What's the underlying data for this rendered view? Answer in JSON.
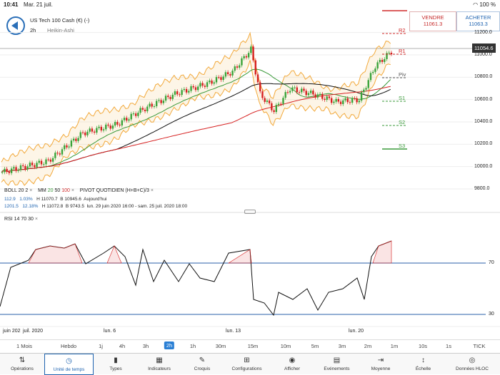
{
  "status_bar": {
    "time": "10:41",
    "date": "Mar. 21 juil.",
    "battery": "100 %"
  },
  "header": {
    "instrument": "US Tech 100 Cash (€) (-)",
    "timeframe": "2h",
    "chart_type": "Heikin-Ashi",
    "sell_label": "VENDRE",
    "sell_price": "11061.3",
    "buy_label": "ACHETER",
    "buy_price": "11063.3"
  },
  "colors": {
    "accent": "#2a7fd4",
    "candle_up": "#3aa33a",
    "candle_down": "#d62020",
    "boll": "#f2a93b",
    "mm20": "#3a9a3a",
    "mm50": "#111111",
    "mm100": "#d62020",
    "rsi": "#111111"
  },
  "price_axis": {
    "ticks": [
      "11200.0",
      "11000.0",
      "10800.0",
      "10600.0",
      "10400.0",
      "10200.0",
      "10000.0",
      "9800.0"
    ],
    "current": "11054.6"
  },
  "pivots": [
    "R2",
    "R1",
    "Piv",
    "S1",
    "S2",
    "S3"
  ],
  "indicators": {
    "boll": "BOLL",
    "boll_p1": "20",
    "boll_p2": "2",
    "mm": "MM",
    "mm_20": "20",
    "mm_50": "50",
    "mm_100": "100",
    "pivot": "PIVOT",
    "pivot_type": "QUOTIDIEN",
    "pivot_formula": "(H+B+C)/3",
    "row1": {
      "a": "112.9",
      "b": "1.03%",
      "h": "H 11070.7",
      "bb": "B 10945.6",
      "period": "Aujourd'hui"
    },
    "row2": {
      "a": "1201.5",
      "b": "12.18%",
      "h": "H 11072.8",
      "bb": "B 9743.5",
      "period": "lun. 29 juin 2020 16:00 - sam. 25 juil. 2020 18:00"
    }
  },
  "rsi": {
    "label": "RSI",
    "p1": "14",
    "p2": "70",
    "p3": "30",
    "level_high": "70",
    "level_low": "30"
  },
  "time_axis": [
    "juin 202",
    "juil. 2020",
    "lun. 6",
    "lun. 13",
    "lun. 20"
  ],
  "timeframes": [
    "1 Mois",
    "Hebdo",
    "1j",
    "4h",
    "3h",
    "2h",
    "1h",
    "30m",
    "15m",
    "10m",
    "5m",
    "3m",
    "2m",
    "1m",
    "10s",
    "1s",
    "TICK"
  ],
  "selected_timeframe": "2h",
  "toolbar": [
    "Opérations",
    "Unité de temps",
    "Types",
    "Indicateurs",
    "Croquis",
    "Configurations",
    "Afficher",
    "Evénements",
    "Moyenne",
    "Échelle",
    "Données HLOC"
  ]
}
